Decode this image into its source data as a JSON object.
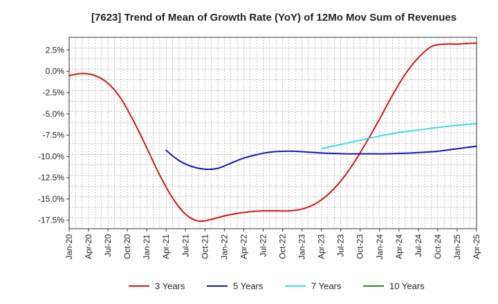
{
  "chart_data": {
    "type": "line",
    "title": "[7623]  Trend of Mean of Growth Rate (YoY) of 12Mo Mov Sum of Revenues",
    "xlabel": "",
    "ylabel": "",
    "x_ticks": [
      "Jan-20",
      "Apr-20",
      "Jul-20",
      "Oct-20",
      "Jan-21",
      "Apr-21",
      "Jul-21",
      "Oct-21",
      "Jan-22",
      "Apr-22",
      "Jul-22",
      "Oct-22",
      "Jan-23",
      "Apr-23",
      "Jul-23",
      "Oct-23",
      "Jan-24",
      "Apr-24",
      "Jul-24",
      "Oct-24",
      "Jan-25",
      "Apr-25"
    ],
    "y_ticks": [
      "2.5%",
      "0.0%",
      "-2.5%",
      "-5.0%",
      "-7.5%",
      "-10.0%",
      "-12.5%",
      "-15.0%",
      "-17.5%"
    ],
    "y_tick_values": [
      2.5,
      0,
      -2.5,
      -5,
      -7.5,
      -10,
      -12.5,
      -15,
      -17.5
    ],
    "ylim": [
      -18.5,
      4.0
    ],
    "x_range_months": [
      0,
      63
    ],
    "grid": true,
    "legend_position": "bottom",
    "series": [
      {
        "name": "3 Years",
        "color": "#dd1111",
        "months": [
          0,
          2,
          4,
          6,
          8,
          10,
          12,
          14,
          16,
          18,
          20,
          22,
          24,
          26,
          28,
          30,
          32,
          34,
          36,
          38,
          40,
          42,
          44,
          46,
          48,
          50,
          52,
          54,
          56,
          58,
          60,
          62,
          63
        ],
        "values": [
          -0.5,
          -0.25,
          -0.5,
          -1.4,
          -3.2,
          -5.9,
          -9.0,
          -12.2,
          -14.9,
          -16.8,
          -17.6,
          -17.4,
          -17.0,
          -16.7,
          -16.5,
          -16.4,
          -16.4,
          -16.4,
          -16.2,
          -15.6,
          -14.5,
          -12.9,
          -10.8,
          -8.3,
          -5.6,
          -2.8,
          -0.3,
          1.6,
          2.9,
          3.2,
          3.2,
          3.3,
          3.3
        ]
      },
      {
        "name": "5 Years",
        "color": "#1111cc",
        "months": [
          15,
          17,
          19,
          21,
          23,
          25,
          27,
          29,
          31,
          33,
          35,
          37,
          39,
          41,
          43,
          45,
          47,
          49,
          51,
          53,
          55,
          57,
          59,
          61,
          63
        ],
        "values": [
          -9.3,
          -10.5,
          -11.2,
          -11.5,
          -11.4,
          -10.8,
          -10.2,
          -9.8,
          -9.5,
          -9.4,
          -9.4,
          -9.5,
          -9.6,
          -9.65,
          -9.7,
          -9.7,
          -9.7,
          -9.7,
          -9.65,
          -9.6,
          -9.5,
          -9.4,
          -9.2,
          -9.0,
          -8.8
        ]
      },
      {
        "name": "7 Years",
        "color": "#33e0e8",
        "months": [
          39,
          42,
          45,
          48,
          51,
          54,
          57,
          60,
          63
        ],
        "values": [
          -9.1,
          -8.6,
          -8.1,
          -7.6,
          -7.2,
          -6.9,
          -6.6,
          -6.35,
          -6.15
        ]
      },
      {
        "name": "10 Years",
        "color": "#228822",
        "months": [],
        "values": []
      }
    ]
  }
}
